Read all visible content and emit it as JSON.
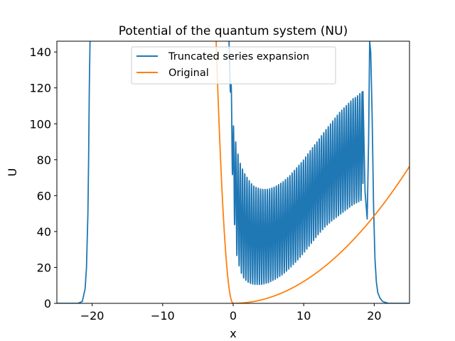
{
  "chart_data": {
    "type": "line",
    "title": "Potential of the quantum system (NU)",
    "xlabel": "x",
    "ylabel": "U",
    "xlim": [
      -25,
      25
    ],
    "ylim": [
      0,
      146
    ],
    "xticks": [
      -20,
      -10,
      0,
      10,
      20
    ],
    "yticks": [
      0,
      20,
      40,
      60,
      80,
      100,
      120,
      140
    ],
    "grid": false,
    "legend_placement": "upper-center",
    "series": [
      {
        "name": "Truncated series expansion",
        "color": "#1f77b4",
        "envelope": {
          "x": [
            -0.6,
            0.0,
            0.5,
            1.0,
            1.5,
            2.0,
            2.5,
            3.0,
            4.0,
            5.0,
            6.0,
            7.0,
            8.0,
            9.0,
            10.0,
            11.0,
            12.0,
            13.0,
            14.0,
            15.0,
            16.0,
            17.0,
            17.5,
            18.0,
            18.4
          ],
          "upper": [
            146,
            100,
            86,
            78,
            73,
            70,
            67,
            65,
            63.5,
            63.5,
            65,
            67.5,
            71,
            75.5,
            80,
            85.5,
            90.5,
            96,
            101,
            106,
            110,
            114,
            115,
            117,
            118
          ],
          "lower": [
            146,
            55,
            27,
            18,
            14,
            12,
            11,
            10.5,
            10.5,
            11.5,
            13.5,
            16,
            19.5,
            23.5,
            28,
            33,
            38,
            42.5,
            46,
            49,
            52,
            55,
            56,
            57,
            58
          ]
        },
        "oscillation_period": 0.32,
        "left_wall": {
          "x": [
            -25,
            -22,
            -21.4,
            -21.0,
            -20.8,
            -20.6,
            -20.5,
            -20.4,
            -20.3
          ],
          "y": [
            0,
            0,
            1,
            8,
            20,
            50,
            80,
            120,
            146
          ]
        },
        "right_section": {
          "x": [
            18.4,
            18.7,
            19.0,
            19.2,
            19.35,
            19.5,
            19.7,
            19.9,
            20.1,
            20.3,
            20.5,
            20.8,
            21.2,
            22,
            25
          ],
          "y": [
            118,
            62,
            47,
            90,
            146,
            140,
            105,
            55,
            25,
            12,
            6,
            3,
            1,
            0,
            0
          ]
        }
      },
      {
        "name": "Original",
        "color": "#ff7f0e",
        "formula": "U = 0.122*x^2 for x>=0; 25*x^2 for x<0",
        "coef_pos": 0.122,
        "coef_neg": 25
      }
    ]
  }
}
